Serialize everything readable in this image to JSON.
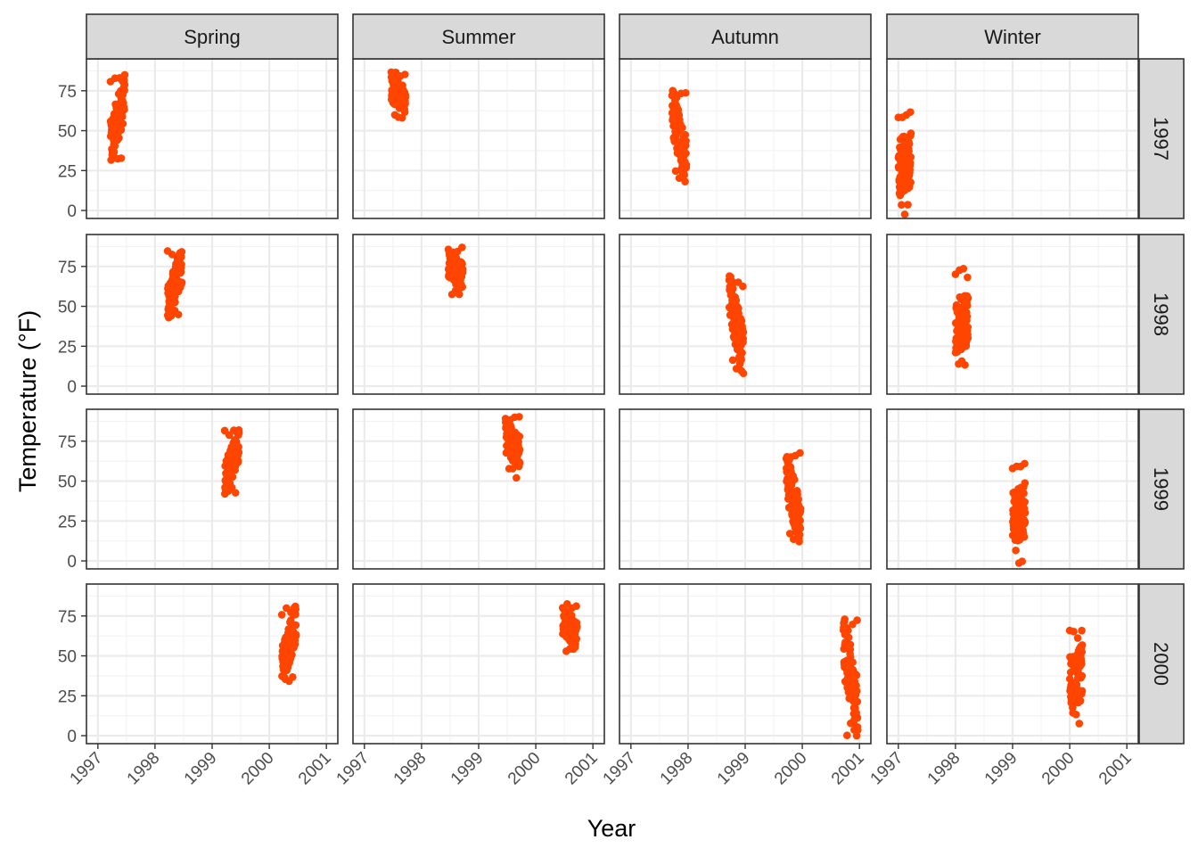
{
  "chart_data": {
    "type": "scatter",
    "xlabel": "Year",
    "ylabel": "Temperature (°F)",
    "facet_columns": [
      "Spring",
      "Summer",
      "Autumn",
      "Winter"
    ],
    "facet_rows": [
      "1997",
      "1998",
      "1999",
      "2000"
    ],
    "xlim": [
      1996.8,
      2001.2
    ],
    "ylim": [
      -5,
      95
    ],
    "x_ticks": [
      1997,
      1998,
      1999,
      2000,
      2001
    ],
    "x_tick_labels": [
      "1997",
      "1998",
      "1999",
      "2000",
      "2001"
    ],
    "y_ticks": [
      0,
      25,
      50,
      75
    ],
    "y_tick_labels": [
      "0",
      "25",
      "50",
      "75"
    ],
    "grid": true,
    "point_color": "#ff4500",
    "panels": [
      {
        "column": "Spring",
        "row": "1997",
        "x_range": [
          1997.22,
          1997.47
        ],
        "y_range": [
          29,
          85
        ]
      },
      {
        "column": "Summer",
        "row": "1997",
        "x_range": [
          1997.47,
          1997.72
        ],
        "y_range": [
          57,
          87
        ]
      },
      {
        "column": "Autumn",
        "row": "1997",
        "x_range": [
          1997.72,
          1997.97
        ],
        "y_range": [
          18,
          75
        ]
      },
      {
        "column": "Winter",
        "row": "1997",
        "x_range": [
          1997.0,
          1997.22
        ],
        "y_range": [
          -3,
          62
        ]
      },
      {
        "column": "Spring",
        "row": "1998",
        "x_range": [
          1998.22,
          1998.47
        ],
        "y_range": [
          42,
          85
        ]
      },
      {
        "column": "Summer",
        "row": "1998",
        "x_range": [
          1998.47,
          1998.72
        ],
        "y_range": [
          56,
          87
        ]
      },
      {
        "column": "Autumn",
        "row": "1998",
        "x_range": [
          1998.72,
          1998.97
        ],
        "y_range": [
          8,
          69
        ]
      },
      {
        "column": "Winter",
        "row": "1998",
        "x_range": [
          1998.0,
          1998.22
        ],
        "y_range": [
          8,
          74
        ]
      },
      {
        "column": "Spring",
        "row": "1999",
        "x_range": [
          1999.22,
          1999.47
        ],
        "y_range": [
          42,
          82
        ]
      },
      {
        "column": "Summer",
        "row": "1999",
        "x_range": [
          1999.47,
          1999.72
        ],
        "y_range": [
          52,
          92
        ]
      },
      {
        "column": "Autumn",
        "row": "1999",
        "x_range": [
          1999.72,
          1999.97
        ],
        "y_range": [
          9,
          68
        ]
      },
      {
        "column": "Winter",
        "row": "1999",
        "x_range": [
          1999.0,
          1999.22
        ],
        "y_range": [
          -2,
          61
        ]
      },
      {
        "column": "Spring",
        "row": "2000",
        "x_range": [
          2000.22,
          2000.47
        ],
        "y_range": [
          34,
          81
        ]
      },
      {
        "column": "Summer",
        "row": "2000",
        "x_range": [
          2000.47,
          2000.72
        ],
        "y_range": [
          50,
          83
        ]
      },
      {
        "column": "Autumn",
        "row": "2000",
        "x_range": [
          2000.72,
          2000.97
        ],
        "y_range": [
          0,
          73
        ]
      },
      {
        "column": "Winter",
        "row": "2000",
        "x_range": [
          2000.0,
          2000.22
        ],
        "y_range": [
          5,
          68
        ]
      }
    ]
  }
}
